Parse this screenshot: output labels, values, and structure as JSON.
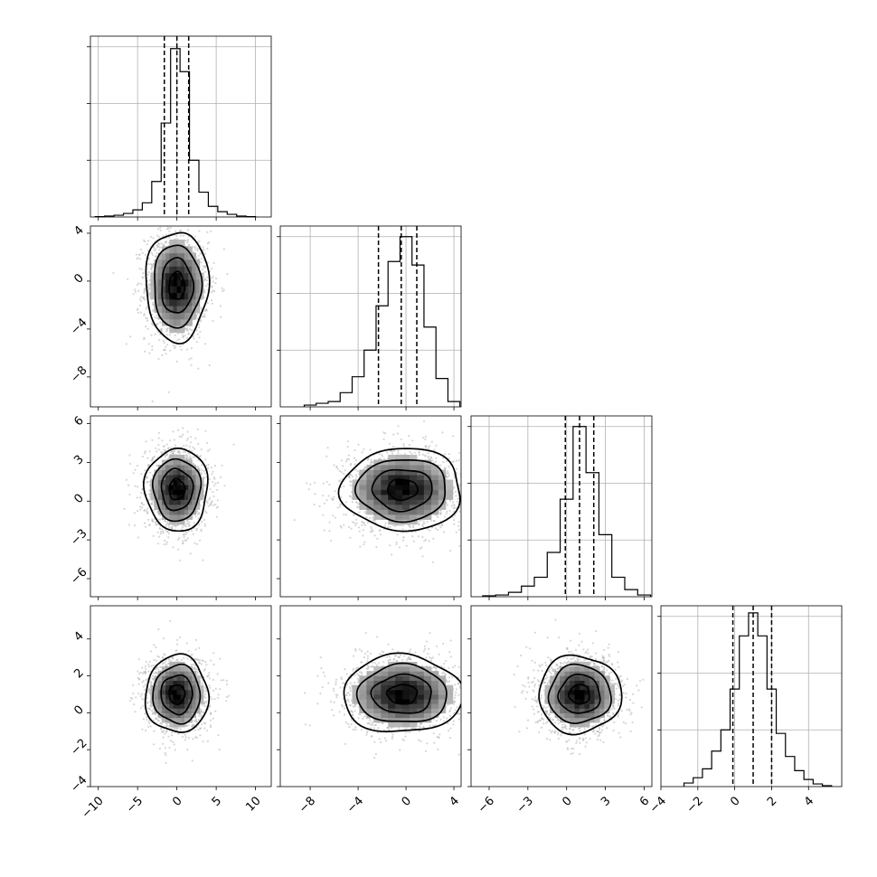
{
  "chart_data": {
    "type": "corner",
    "grid": true,
    "parameters": [
      {
        "index": 0,
        "range": [
          -11,
          12
        ],
        "ticks": [
          -10,
          -5,
          0,
          5,
          10
        ],
        "tick_labels": [
          "−10",
          "−5",
          "0",
          "5",
          "10"
        ],
        "quantiles": [
          -1.6,
          0.0,
          1.5
        ],
        "hist": [
          {
            "x": -9.8,
            "c": 0.002
          },
          {
            "x": -8.6,
            "c": 0.005
          },
          {
            "x": -7.4,
            "c": 0.01
          },
          {
            "x": -6.2,
            "c": 0.02
          },
          {
            "x": -5.0,
            "c": 0.04
          },
          {
            "x": -3.8,
            "c": 0.08
          },
          {
            "x": -2.6,
            "c": 0.2
          },
          {
            "x": -1.4,
            "c": 0.53
          },
          {
            "x": -0.2,
            "c": 0.95
          },
          {
            "x": 1.0,
            "c": 0.82
          },
          {
            "x": 2.2,
            "c": 0.32
          },
          {
            "x": 3.4,
            "c": 0.14
          },
          {
            "x": 4.6,
            "c": 0.06
          },
          {
            "x": 5.8,
            "c": 0.03
          },
          {
            "x": 7.0,
            "c": 0.015
          },
          {
            "x": 8.2,
            "c": 0.005
          },
          {
            "x": 9.4,
            "c": 0.002
          }
        ]
      },
      {
        "index": 1,
        "range": [
          -10.5,
          4.6
        ],
        "ticks": [
          -8,
          -4,
          0,
          4
        ],
        "tick_labels": [
          "−8",
          "−4",
          "0",
          "4"
        ],
        "quantiles": [
          -2.3,
          -0.4,
          0.9
        ],
        "hist": [
          {
            "x": -8.0,
            "c": 0.01
          },
          {
            "x": -7.0,
            "c": 0.02
          },
          {
            "x": -6.0,
            "c": 0.03
          },
          {
            "x": -5.0,
            "c": 0.08
          },
          {
            "x": -4.0,
            "c": 0.17
          },
          {
            "x": -3.0,
            "c": 0.32
          },
          {
            "x": -2.0,
            "c": 0.57
          },
          {
            "x": -1.0,
            "c": 0.82
          },
          {
            "x": 0.0,
            "c": 0.96
          },
          {
            "x": 1.0,
            "c": 0.8
          },
          {
            "x": 2.0,
            "c": 0.45
          },
          {
            "x": 3.0,
            "c": 0.16
          },
          {
            "x": 4.0,
            "c": 0.03
          }
        ]
      },
      {
        "index": 2,
        "range": [
          -7.4,
          6.6
        ],
        "ticks": [
          -6,
          -3,
          0,
          3,
          6
        ],
        "tick_labels": [
          "−6",
          "−3",
          "0",
          "3",
          "6"
        ],
        "quantiles": [
          -0.1,
          1.0,
          2.1
        ],
        "hist": [
          {
            "x": -6.0,
            "c": 0.005
          },
          {
            "x": -5.0,
            "c": 0.01
          },
          {
            "x": -4.0,
            "c": 0.025
          },
          {
            "x": -3.0,
            "c": 0.06
          },
          {
            "x": -2.0,
            "c": 0.11
          },
          {
            "x": -1.0,
            "c": 0.25
          },
          {
            "x": 0.0,
            "c": 0.55
          },
          {
            "x": 1.0,
            "c": 0.96
          },
          {
            "x": 2.0,
            "c": 0.7
          },
          {
            "x": 3.0,
            "c": 0.35
          },
          {
            "x": 4.0,
            "c": 0.11
          },
          {
            "x": 5.0,
            "c": 0.04
          },
          {
            "x": 6.0,
            "c": 0.01
          }
        ]
      },
      {
        "index": 3,
        "range": [
          -4,
          5.8
        ],
        "ticks": [
          -4,
          -2,
          0,
          2,
          4
        ],
        "tick_labels": [
          "−4",
          "−2",
          "0",
          "2",
          "4"
        ],
        "quantiles": [
          -0.1,
          1.0,
          2.0
        ],
        "hist": [
          {
            "x": -2.5,
            "c": 0.02
          },
          {
            "x": -2.0,
            "c": 0.05
          },
          {
            "x": -1.5,
            "c": 0.1
          },
          {
            "x": -1.0,
            "c": 0.2
          },
          {
            "x": -0.5,
            "c": 0.32
          },
          {
            "x": 0.0,
            "c": 0.55
          },
          {
            "x": 0.5,
            "c": 0.85
          },
          {
            "x": 1.0,
            "c": 0.98
          },
          {
            "x": 1.5,
            "c": 0.85
          },
          {
            "x": 2.0,
            "c": 0.55
          },
          {
            "x": 2.5,
            "c": 0.3
          },
          {
            "x": 3.0,
            "c": 0.17
          },
          {
            "x": 3.5,
            "c": 0.09
          },
          {
            "x": 4.0,
            "c": 0.04
          },
          {
            "x": 4.5,
            "c": 0.015
          },
          {
            "x": 5.0,
            "c": 0.005
          }
        ]
      }
    ],
    "pairs": [
      {
        "col": 0,
        "row": 1,
        "center": [
          0,
          -0.4
        ],
        "sigma": [
          2.0,
          2.3
        ],
        "corr": 0
      },
      {
        "col": 0,
        "row": 2,
        "center": [
          0,
          0.9
        ],
        "sigma": [
          2.0,
          1.6
        ],
        "corr": 0
      },
      {
        "col": 1,
        "row": 2,
        "center": [
          -0.3,
          0.9
        ],
        "sigma": [
          2.5,
          1.6
        ],
        "corr": 0
      },
      {
        "col": 0,
        "row": 3,
        "center": [
          0,
          1.0
        ],
        "sigma": [
          2.0,
          1.05
        ],
        "corr": 0
      },
      {
        "col": 1,
        "row": 3,
        "center": [
          -0.3,
          1.0
        ],
        "sigma": [
          2.5,
          1.05
        ],
        "corr": 0
      },
      {
        "col": 2,
        "row": 3,
        "center": [
          1.0,
          1.0
        ],
        "sigma": [
          1.6,
          1.05
        ],
        "corr": 0
      }
    ],
    "contour_levels_sigma": [
      0.5,
      1.0,
      1.5,
      2.0
    ],
    "quantile_style": "dashed",
    "colors": {
      "line": "#000000",
      "scatter": "#b5b5b5",
      "grid": "#b0b0b0"
    }
  }
}
